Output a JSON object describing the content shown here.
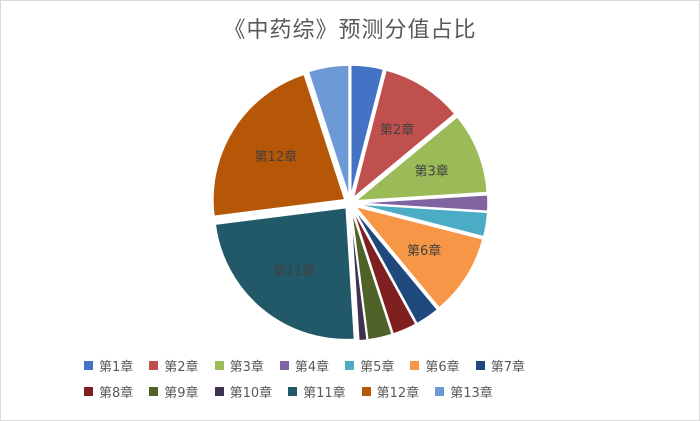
{
  "chart_data": {
    "type": "pie",
    "title": "《中药综》预测分值占比",
    "series": [
      {
        "name": "第1章",
        "value": 4,
        "color": "#4472C4",
        "label": ""
      },
      {
        "name": "第2章",
        "value": 10,
        "color": "#C0504D",
        "label": "第2章"
      },
      {
        "name": "第3章",
        "value": 10,
        "color": "#9BBB59",
        "label": "第3章"
      },
      {
        "name": "第4章",
        "value": 2,
        "color": "#8064A2",
        "label": ""
      },
      {
        "name": "第5章",
        "value": 3,
        "color": "#4BACC6",
        "label": ""
      },
      {
        "name": "第6章",
        "value": 10,
        "color": "#F79646",
        "label": "第6章"
      },
      {
        "name": "第7章",
        "value": 3,
        "color": "#1F497D",
        "label": ""
      },
      {
        "name": "第8章",
        "value": 3,
        "color": "#7F1F1F",
        "label": ""
      },
      {
        "name": "第9章",
        "value": 3,
        "color": "#4F6228",
        "label": ""
      },
      {
        "name": "第10章",
        "value": 1,
        "color": "#3F3151",
        "label": ""
      },
      {
        "name": "第11章",
        "value": 24,
        "color": "#215968",
        "label": "第11章"
      },
      {
        "name": "第12章",
        "value": 22,
        "color": "#B65708",
        "label": "第12章"
      },
      {
        "name": "第13章",
        "value": 5,
        "color": "#6D9AD6",
        "label": ""
      }
    ],
    "legend": "bottom",
    "exploded": true
  }
}
